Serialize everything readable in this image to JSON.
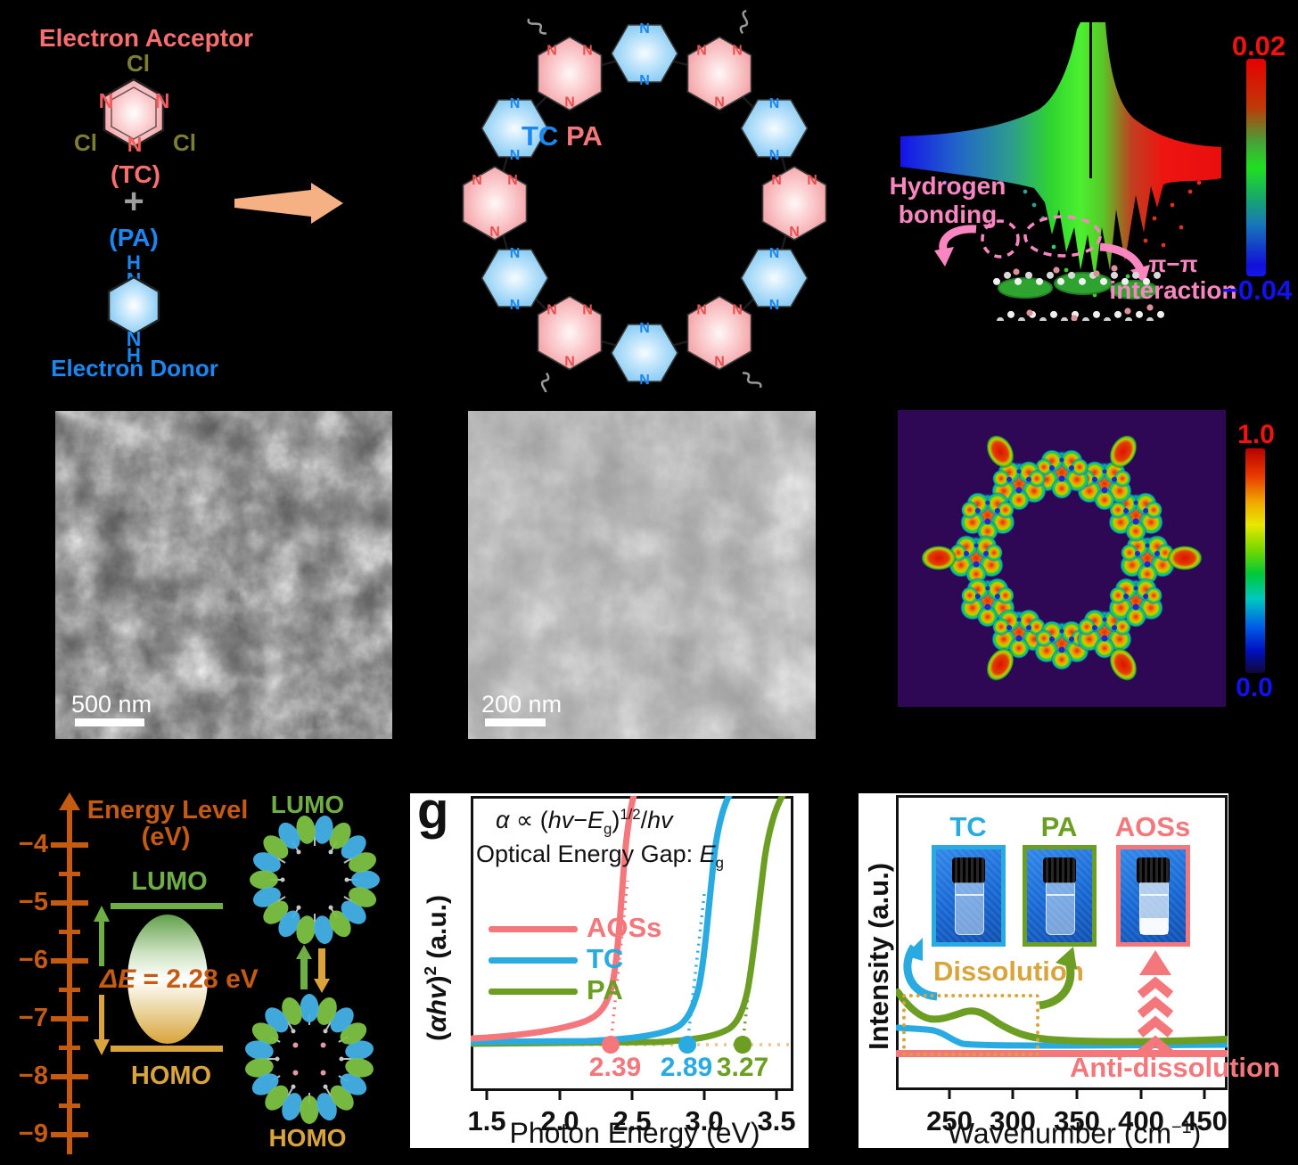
{
  "colors": {
    "salmon": "#F4777C",
    "blue": "#29ABE2",
    "olive_green": "#6B9E23",
    "pink_annotation": "#F986C0",
    "energy_orange": "#C55A11",
    "lumo_green": "#6FAE45",
    "homo_gold": "#D9A43B",
    "cl_olive": "#7E7E33",
    "text_blue": "#1B87F0",
    "reaction_arrow": "#F5B183",
    "peach_dotted": "#F5C08F",
    "elf_background": "#2E0854"
  },
  "a": {
    "acceptor": "Electron Acceptor",
    "cl": "Cl",
    "n": "N",
    "tc": "(TC)",
    "plus": "+",
    "pa": "(PA)",
    "h": "H",
    "donor": "Electron Donor"
  },
  "b": {
    "tc": "TC",
    "pa": "PA",
    "n": "N"
  },
  "c": {
    "hbond1": "Hydrogen",
    "hbond2": "bonding",
    "pi": "π−π",
    "interaction": "interaction",
    "cbar_max": "0.02",
    "cbar_min": "−0.04"
  },
  "sem": {
    "scale": "500 nm"
  },
  "tem": {
    "scale": "200 nm"
  },
  "elf": {
    "cbar_max": "1.0",
    "cbar_min": "0.0"
  },
  "energy": {
    "title1": "Energy Level",
    "title2": "(eV)",
    "ticks": [
      "−4",
      "−5",
      "−6",
      "−7",
      "−8",
      "−9"
    ],
    "lumo": "LUMO",
    "homo": "HOMO",
    "delta_italic": "ΔE",
    "delta_rest": " = 2.28 eV",
    "lumo_orb": "LUMO",
    "homo_orb": "HOMO",
    "lumo_ev_est": -5.1,
    "homo_ev_est": -7.4
  },
  "g": {
    "letter": "g",
    "f1": "α",
    "f2": " ∝ (",
    "f3": "hv",
    "f4": "−",
    "f5": "E",
    "f6": "g",
    "f7": ")",
    "f8": "1/2",
    "f9": "/",
    "f10": "hv",
    "gap1": "Optical Energy Gap: ",
    "gap2": "E",
    "gap3": "g",
    "yl1": "(",
    "yl2": "αhv",
    "yl3": ")",
    "yl4": "2",
    "yl5": " (a.u.)",
    "legend": [
      {
        "label": "AOSs"
      },
      {
        "label": "TC"
      },
      {
        "label": "PA"
      }
    ],
    "eg": [
      "2.39",
      "2.89",
      "3.27"
    ],
    "xticks": [
      "1.5",
      "2.0",
      "2.5",
      "3.0",
      "3.5"
    ],
    "xlabel": "Photon Energy (eV)"
  },
  "h": {
    "ylabel": "Intensity (a.u.)",
    "vials": [
      {
        "label": "TC"
      },
      {
        "label": "PA"
      },
      {
        "label": "AOSs"
      }
    ],
    "dissolution": "Dissolution",
    "anti": "Anti-dissolution",
    "xticks": [
      "250",
      "300",
      "350",
      "400",
      "450"
    ],
    "xl1": "Wavenumber (cm",
    "xl2": "−1",
    "xl3": ")"
  },
  "chart_data": [
    {
      "id": "tauc_plot",
      "type": "line",
      "xlabel": "Photon Energy (eV)",
      "ylabel": "(αhv)2 (a.u.)",
      "xlim": [
        1.39,
        3.7
      ],
      "xticks": [
        1.5,
        2.0,
        2.5,
        3.0,
        3.5
      ],
      "annotations": [
        "α ∝ (hv−Eg)1/2/hv",
        "Optical Energy Gap: Eg"
      ],
      "grid": false,
      "legend_position": "center-left",
      "series": [
        {
          "name": "AOSs",
          "color": "#F4777C",
          "eg_eV": 2.39,
          "x": [
            1.4,
            1.8,
            2.0,
            2.2,
            2.3,
            2.39,
            2.45,
            2.5,
            2.55,
            2.6,
            2.66
          ],
          "y": [
            0.02,
            0.04,
            0.06,
            0.09,
            0.12,
            0.17,
            0.27,
            0.45,
            0.65,
            0.85,
            1.0
          ]
        },
        {
          "name": "TC",
          "color": "#29ABE2",
          "eg_eV": 2.89,
          "x": [
            1.4,
            2.3,
            2.5,
            2.7,
            2.8,
            2.89,
            2.95,
            3.0,
            3.1,
            3.2,
            3.3
          ],
          "y": [
            0.01,
            0.02,
            0.03,
            0.05,
            0.08,
            0.13,
            0.22,
            0.33,
            0.6,
            0.85,
            1.0
          ]
        },
        {
          "name": "PA",
          "color": "#6B9E23",
          "eg_eV": 3.27,
          "x": [
            1.4,
            2.6,
            2.9,
            3.1,
            3.2,
            3.27,
            3.35,
            3.45,
            3.55,
            3.65
          ],
          "y": [
            0.0,
            0.01,
            0.03,
            0.06,
            0.1,
            0.14,
            0.3,
            0.6,
            0.85,
            1.0
          ]
        }
      ],
      "eg_labels": [
        "2.39",
        "2.89",
        "3.27"
      ]
    },
    {
      "id": "dissolution_spectra",
      "type": "line",
      "xlabel": "Wavenumber (cm−1)",
      "ylabel": "Intensity (a.u.)",
      "xlim": [
        210,
        480
      ],
      "xticks": [
        250,
        300,
        350,
        400,
        450
      ],
      "annotations": [
        "Dissolution",
        "Anti-dissolution"
      ],
      "grid": false,
      "series": [
        {
          "name": "PA",
          "color": "#6B9E23",
          "x": [
            210,
            230,
            245,
            262,
            275,
            290,
            310,
            330,
            350,
            400,
            480
          ],
          "y": [
            0.62,
            0.45,
            0.4,
            0.43,
            0.45,
            0.4,
            0.28,
            0.2,
            0.17,
            0.15,
            0.16
          ]
        },
        {
          "name": "TC",
          "color": "#29ABE2",
          "x": [
            210,
            225,
            240,
            255,
            270,
            300,
            350,
            480
          ],
          "y": [
            0.3,
            0.29,
            0.24,
            0.13,
            0.08,
            0.07,
            0.07,
            0.08
          ]
        },
        {
          "name": "AOSs",
          "color": "#F4777C",
          "x": [
            210,
            480
          ],
          "y": [
            0.02,
            0.02
          ]
        }
      ]
    }
  ]
}
